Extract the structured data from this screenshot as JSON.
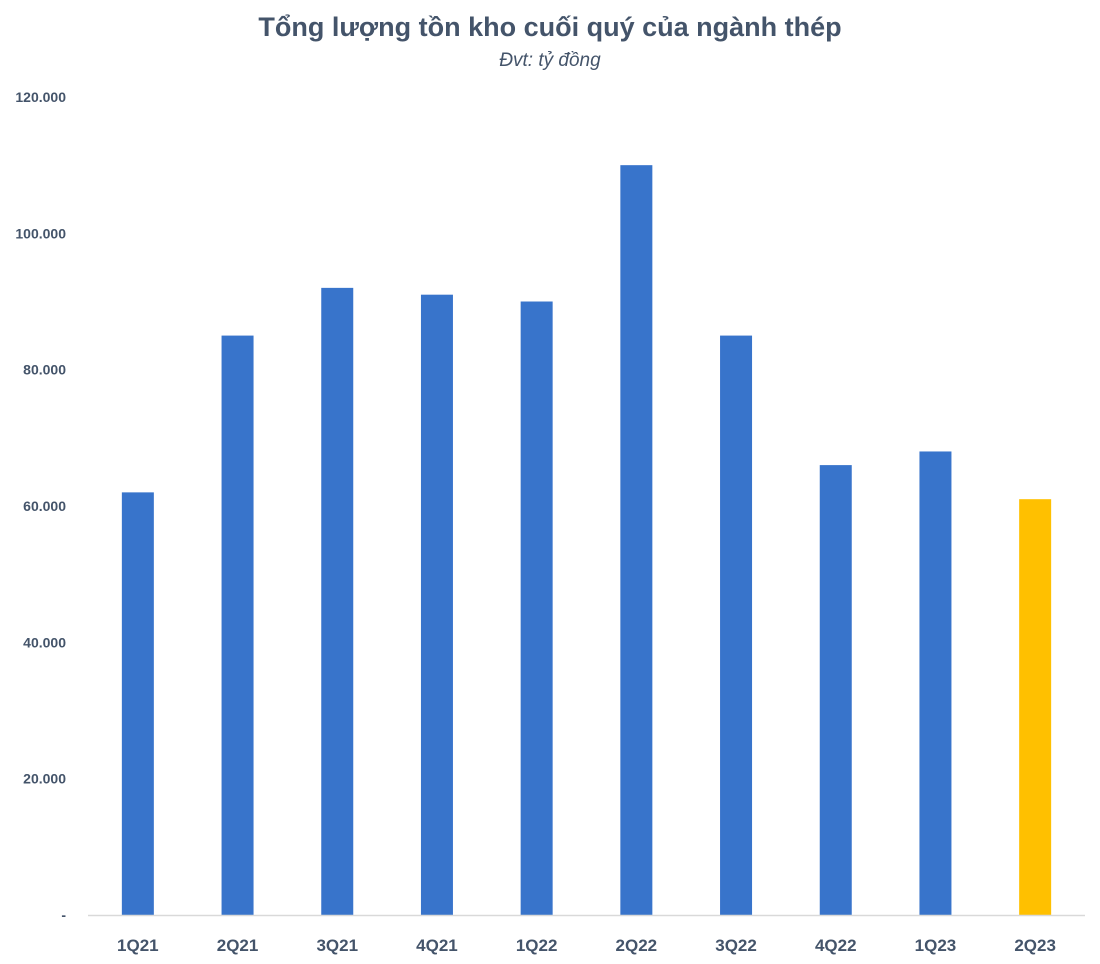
{
  "chart_data": {
    "type": "bar",
    "title": "Tổng lượng tồn kho cuối quý của ngành thép",
    "subtitle": "Đvt: tỷ đồng",
    "xlabel": "",
    "ylabel": "",
    "categories": [
      "1Q21",
      "2Q21",
      "3Q21",
      "4Q21",
      "1Q22",
      "2Q22",
      "3Q22",
      "4Q22",
      "1Q23",
      "2Q23"
    ],
    "values": [
      62000,
      85000,
      92000,
      91000,
      90000,
      110000,
      85000,
      66000,
      68000,
      61000
    ],
    "ylim": [
      0,
      120000
    ],
    "y_ticks": [
      0,
      20000,
      40000,
      60000,
      80000,
      100000,
      120000
    ],
    "y_tick_labels": [
      "-",
      "20.000",
      "40.000",
      "60.000",
      "80.000",
      "100.000",
      "120.000"
    ],
    "grid": false,
    "legend": "none",
    "colors": {
      "bar": "#3874cb",
      "highlight_bar": "#ffc000",
      "highlight_category": "2Q23",
      "text": "#44546a",
      "axis_line": "#d9d9d9"
    }
  }
}
